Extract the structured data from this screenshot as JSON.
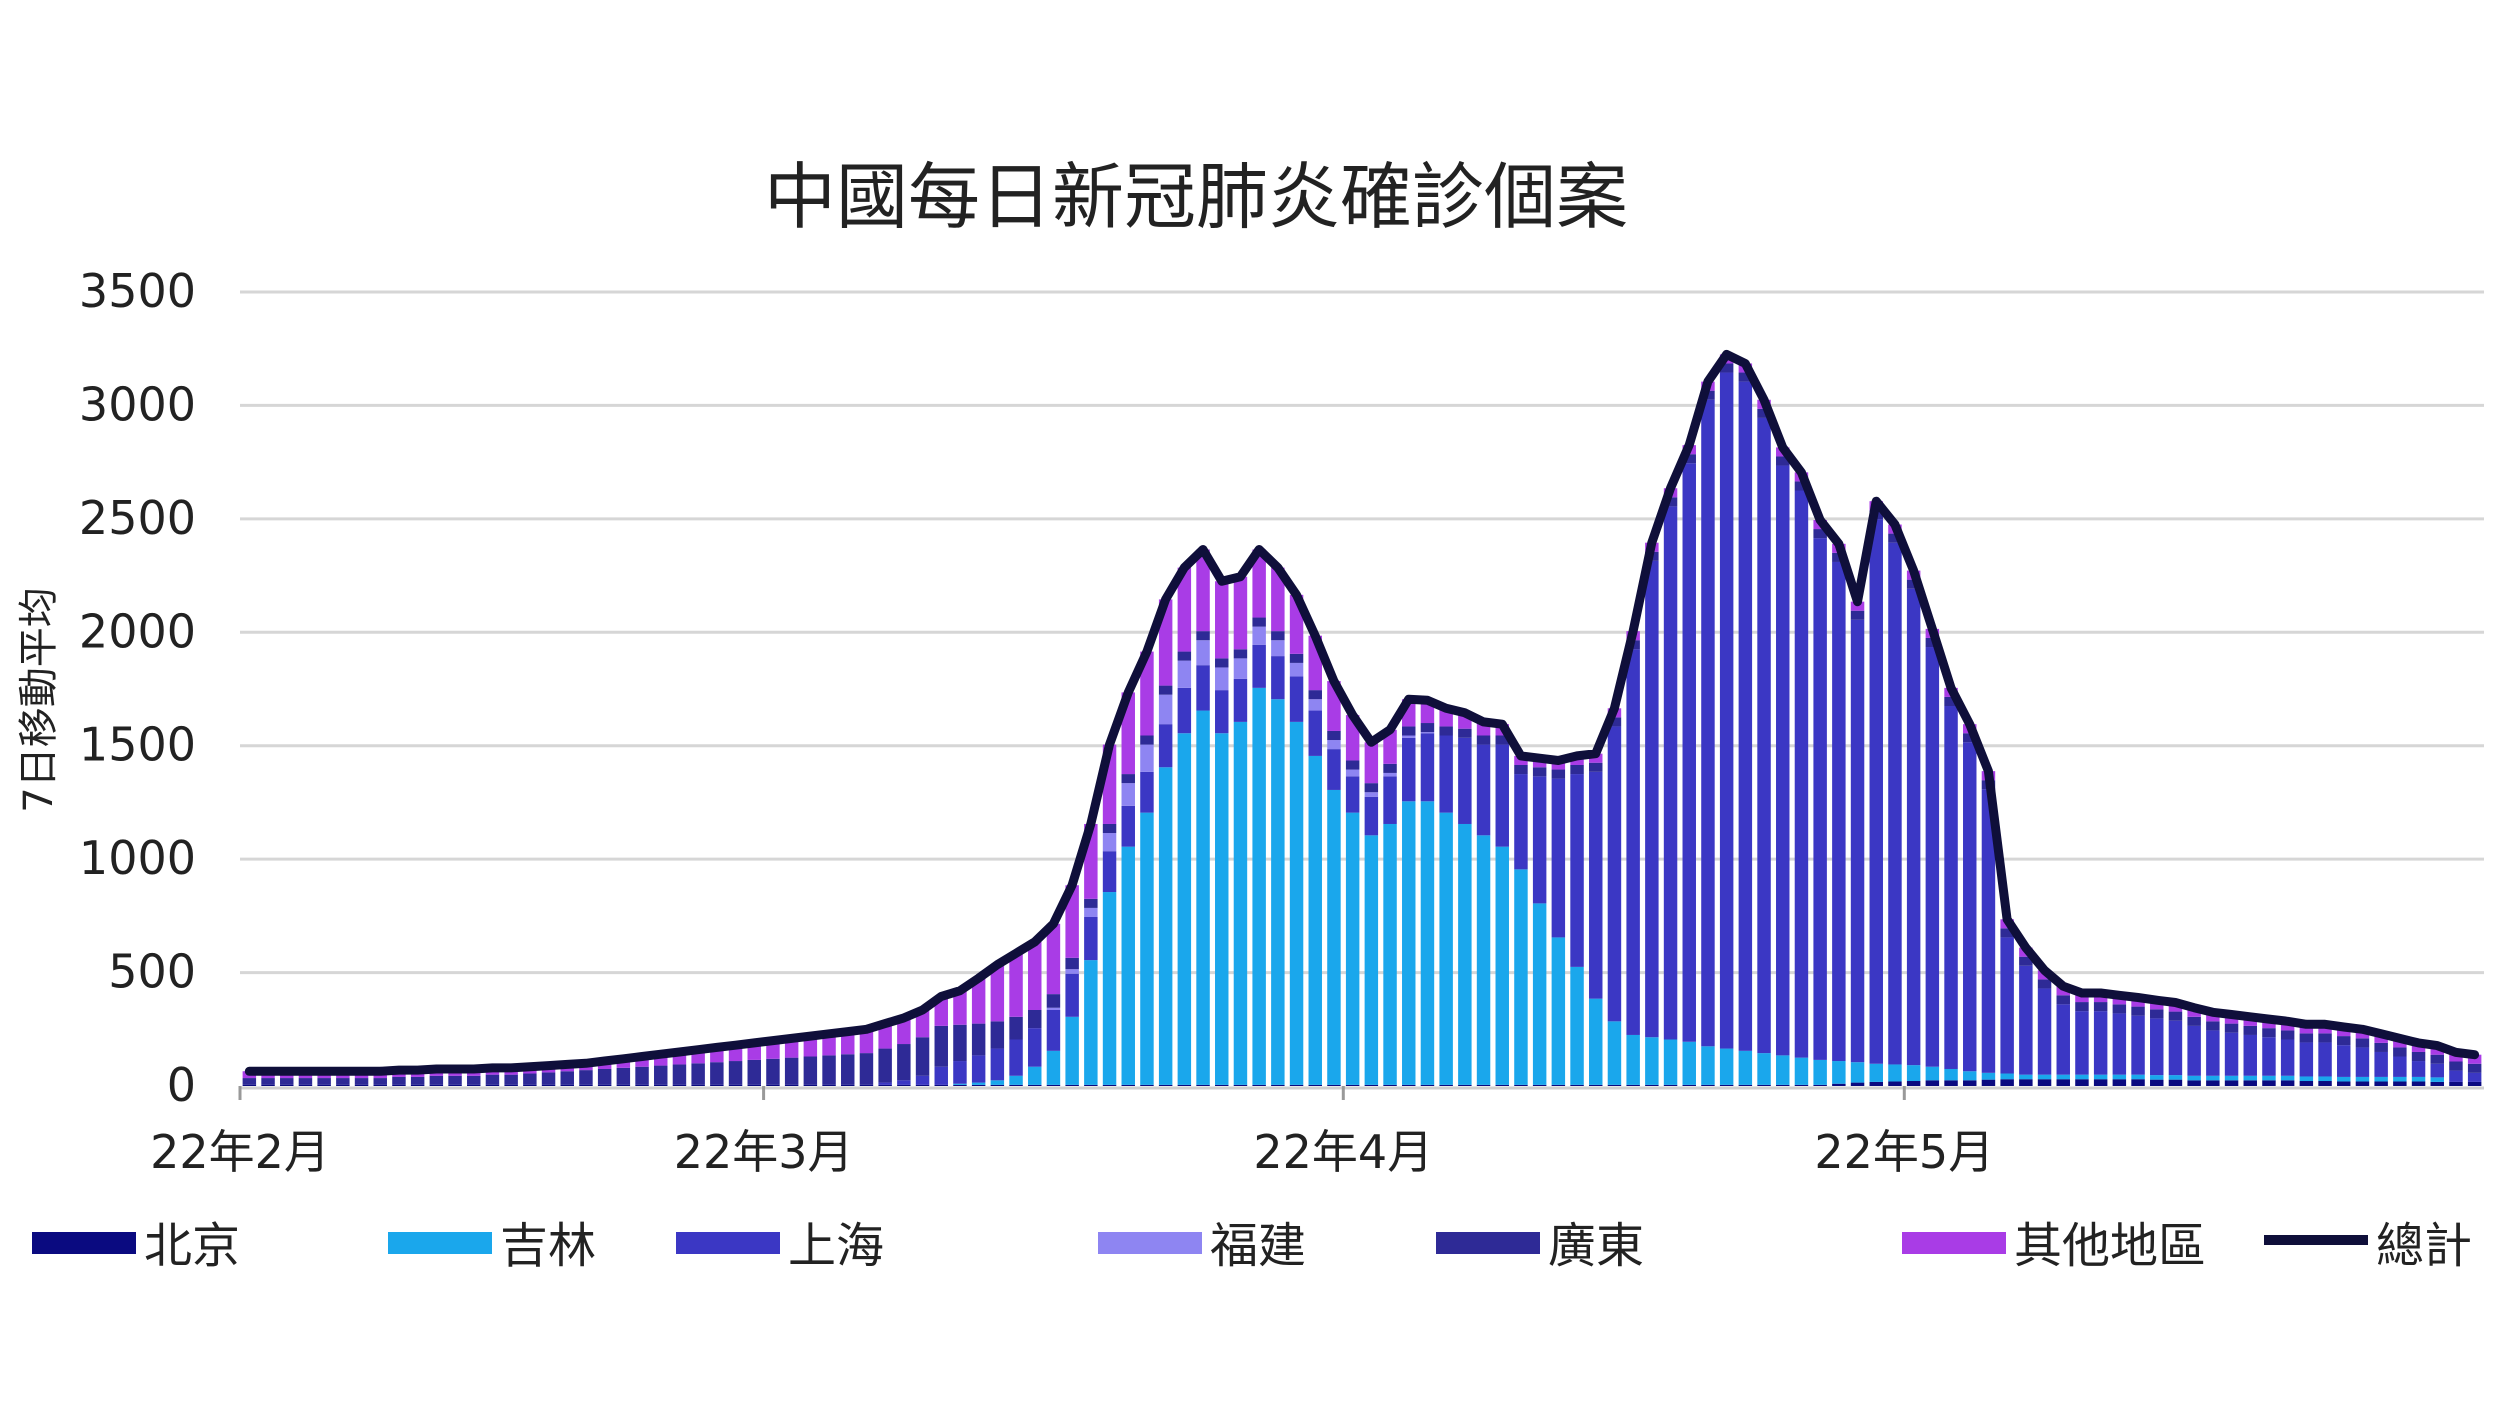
{
  "chart_data": {
    "type": "stacked-bar-with-line",
    "title": "中國每日新冠肺炎確診個案",
    "ylabel": "7日移動平均",
    "xlabel": "",
    "ylim": [
      0,
      3500
    ],
    "yticks": [
      "3500",
      "3000",
      "2500",
      "2000",
      "1500",
      "1000",
      "500",
      "0"
    ],
    "grid": true,
    "legend_position": "bottom",
    "x_month_labels": [
      {
        "label": "22年2月",
        "day_index": 0
      },
      {
        "label": "22年3月",
        "day_index": 28
      },
      {
        "label": "22年4月",
        "day_index": 59
      },
      {
        "label": "22年5月",
        "day_index": 89
      }
    ],
    "series": [
      {
        "name": "北京",
        "color": "#0a0a80",
        "values": [
          5,
          5,
          5,
          5,
          5,
          5,
          5,
          5,
          5,
          5,
          5,
          5,
          5,
          5,
          5,
          5,
          5,
          5,
          5,
          5,
          5,
          5,
          5,
          5,
          5,
          5,
          5,
          5,
          5,
          5,
          5,
          5,
          5,
          5,
          5,
          5,
          5,
          5,
          5,
          5,
          5,
          5,
          5,
          5,
          5,
          5,
          5,
          5,
          5,
          5,
          5,
          5,
          5,
          5,
          5,
          5,
          5,
          5,
          5,
          5,
          5,
          5,
          5,
          5,
          5,
          5,
          5,
          5,
          5,
          5,
          5,
          5,
          5,
          5,
          5,
          5,
          5,
          5,
          5,
          5,
          5,
          5,
          5,
          5,
          5,
          10,
          15,
          18,
          20,
          22,
          25,
          25,
          25,
          28,
          30,
          30,
          30,
          30,
          30,
          30,
          30,
          30,
          28,
          28,
          25,
          25,
          25,
          25,
          25,
          25,
          22,
          22,
          20,
          20,
          20,
          20,
          20,
          18,
          18,
          18
        ]
      },
      {
        "name": "吉林",
        "color": "#1aa7ec",
        "values": [
          0,
          0,
          0,
          0,
          0,
          0,
          0,
          0,
          0,
          0,
          0,
          0,
          0,
          0,
          0,
          0,
          0,
          0,
          0,
          0,
          0,
          0,
          0,
          0,
          0,
          0,
          0,
          0,
          0,
          0,
          0,
          0,
          0,
          0,
          0,
          0,
          0,
          0,
          5,
          10,
          20,
          40,
          80,
          150,
          300,
          550,
          850,
          1050,
          1200,
          1400,
          1550,
          1650,
          1550,
          1600,
          1750,
          1700,
          1600,
          1450,
          1300,
          1200,
          1100,
          1150,
          1250,
          1250,
          1200,
          1150,
          1100,
          1050,
          950,
          800,
          650,
          520,
          380,
          280,
          220,
          210,
          200,
          190,
          170,
          160,
          150,
          140,
          130,
          120,
          110,
          100,
          90,
          80,
          75,
          70,
          60,
          50,
          40,
          30,
          25,
          20,
          20,
          20,
          20,
          20,
          20,
          20,
          20,
          20,
          20,
          20,
          20,
          20,
          20,
          20,
          20,
          20,
          20,
          20,
          20,
          20,
          20,
          20
        ]
      },
      {
        "name": "上海",
        "color": "#3b37c4",
        "values": [
          0,
          0,
          0,
          0,
          0,
          0,
          0,
          0,
          0,
          0,
          0,
          0,
          0,
          0,
          0,
          0,
          0,
          0,
          0,
          0,
          0,
          0,
          0,
          0,
          0,
          0,
          0,
          0,
          0,
          0,
          0,
          0,
          0,
          0,
          10,
          20,
          40,
          80,
          100,
          120,
          140,
          160,
          170,
          180,
          190,
          190,
          180,
          180,
          180,
          190,
          200,
          200,
          190,
          190,
          190,
          190,
          200,
          200,
          180,
          160,
          170,
          210,
          280,
          300,
          340,
          380,
          400,
          450,
          420,
          560,
          700,
          850,
          1000,
          1300,
          1700,
          2100,
          2350,
          2550,
          2850,
          2980,
          2950,
          2800,
          2600,
          2500,
          2300,
          2200,
          1950,
          2400,
          2300,
          2100,
          1850,
          1600,
          1450,
          1250,
          600,
          480,
          380,
          310,
          280,
          280,
          270,
          260,
          250,
          240,
          220,
          200,
          190,
          180,
          170,
          160,
          150,
          150,
          140,
          130,
          110,
          90,
          70,
          60,
          50,
          40
        ]
      },
      {
        "name": "福建",
        "color": "#8e85f2",
        "values": [
          0,
          0,
          0,
          0,
          0,
          0,
          0,
          0,
          0,
          0,
          0,
          0,
          0,
          0,
          0,
          0,
          0,
          0,
          0,
          0,
          0,
          0,
          0,
          0,
          0,
          0,
          0,
          0,
          0,
          0,
          0,
          0,
          0,
          0,
          0,
          0,
          0,
          0,
          0,
          0,
          0,
          0,
          0,
          10,
          20,
          40,
          80,
          100,
          120,
          130,
          120,
          110,
          100,
          90,
          80,
          70,
          60,
          50,
          40,
          30,
          20,
          15,
          10,
          5,
          0,
          0,
          0,
          0,
          0,
          0,
          0,
          0,
          0,
          0,
          0,
          0,
          0,
          0,
          0,
          0,
          0,
          0,
          0,
          0,
          0,
          0,
          0,
          0,
          0,
          0,
          0,
          0,
          0,
          0,
          0,
          0,
          0,
          0,
          0,
          0,
          0,
          0,
          0,
          0,
          0,
          0,
          0,
          0,
          0,
          0,
          0,
          0,
          0,
          0,
          0,
          0,
          0,
          0,
          0,
          0
        ]
      },
      {
        "name": "廣東",
        "color": "#2e2a96",
        "values": [
          30,
          30,
          30,
          30,
          30,
          30,
          30,
          30,
          35,
          35,
          40,
          40,
          40,
          45,
          45,
          50,
          55,
          60,
          65,
          70,
          75,
          80,
          85,
          90,
          95,
          100,
          105,
          110,
          115,
          120,
          125,
          130,
          135,
          140,
          150,
          160,
          170,
          180,
          160,
          140,
          120,
          100,
          80,
          60,
          50,
          40,
          40,
          40,
          40,
          40,
          40,
          40,
          40,
          40,
          40,
          40,
          40,
          40,
          40,
          40,
          40,
          40,
          40,
          40,
          40,
          40,
          40,
          40,
          40,
          40,
          40,
          40,
          40,
          40,
          40,
          40,
          40,
          40,
          40,
          40,
          40,
          40,
          40,
          40,
          40,
          40,
          40,
          40,
          40,
          40,
          40,
          40,
          40,
          40,
          40,
          40,
          40,
          40,
          40,
          40,
          40,
          40,
          40,
          40,
          40,
          40,
          40,
          40,
          40,
          40,
          40,
          40,
          40,
          40,
          40,
          40,
          40,
          40,
          40,
          40
        ]
      },
      {
        "name": "其他地區",
        "color": "#a93ce6",
        "values": [
          30,
          30,
          30,
          30,
          30,
          30,
          30,
          30,
          30,
          30,
          30,
          30,
          30,
          30,
          30,
          30,
          30,
          30,
          30,
          35,
          40,
          45,
          50,
          55,
          60,
          65,
          70,
          75,
          80,
          85,
          90,
          95,
          100,
          105,
          110,
          115,
          120,
          130,
          150,
          200,
          250,
          280,
          300,
          310,
          320,
          330,
          350,
          360,
          370,
          380,
          370,
          360,
          340,
          320,
          300,
          280,
          260,
          240,
          220,
          200,
          180,
          150,
          120,
          100,
          80,
          70,
          60,
          50,
          40,
          40,
          40,
          40,
          40,
          40,
          40,
          40,
          40,
          40,
          40,
          40,
          40,
          40,
          40,
          40,
          40,
          40,
          40,
          40,
          40,
          40,
          40,
          40,
          40,
          40,
          40,
          40,
          40,
          40,
          40,
          40,
          40,
          40,
          40,
          40,
          40,
          40,
          40,
          40,
          40,
          40,
          40,
          40,
          40,
          40,
          40,
          40,
          40,
          40,
          40,
          40
        ]
      }
    ],
    "line": {
      "name": "總計",
      "color": "#0f0f3a"
    },
    "legend_order": [
      "北京",
      "吉林",
      "上海",
      "福建",
      "廣東",
      "其他地區",
      "總計"
    ]
  }
}
